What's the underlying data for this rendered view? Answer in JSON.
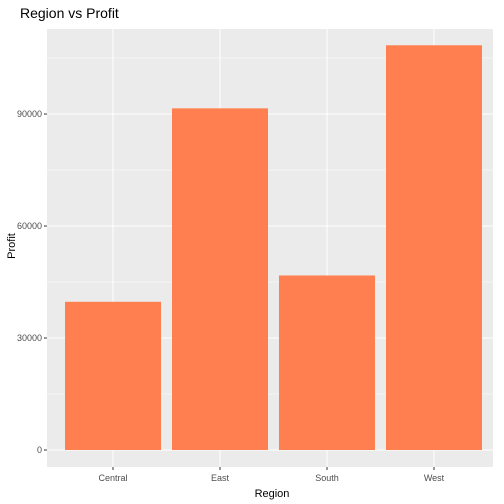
{
  "chart_data": {
    "type": "bar",
    "title": "Region vs Profit",
    "xlabel": "Region",
    "ylabel": "Profit",
    "categories": [
      "Central",
      "East",
      "South",
      "West"
    ],
    "values": [
      39706,
      91523,
      46750,
      108418
    ],
    "ylim": [
      0,
      113839
    ],
    "yticks": [
      0,
      30000,
      60000,
      90000
    ],
    "ytick_labels": [
      "0",
      "30000",
      "60000",
      "90000"
    ],
    "grid": true,
    "bar_color": "#FF7F50",
    "panel_color": "#EBEBEB",
    "grid_color": "#FFFFFF"
  }
}
